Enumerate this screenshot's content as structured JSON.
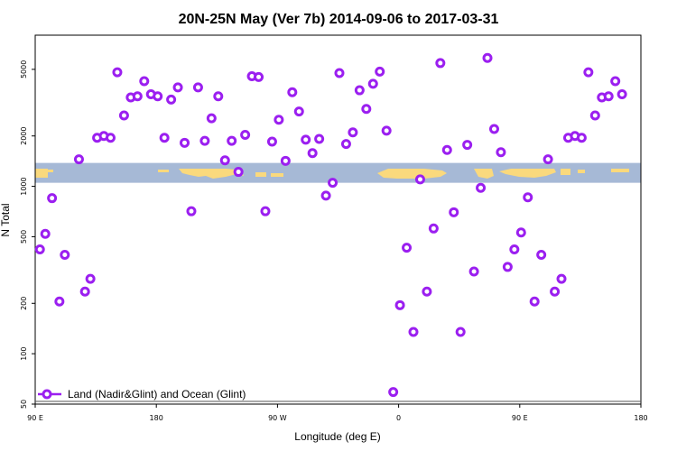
{
  "chart_data": {
    "type": "scatter",
    "title": "20N-25N May (Ver 7b)   2014-09-06 to 2017-03-31",
    "xlabel": "Longitude (deg E)",
    "ylabel": "N Total",
    "xlim": [
      90,
      540
    ],
    "ylim_log": [
      50,
      8000
    ],
    "y_scale": "log",
    "x_ticks": [
      {
        "value": 90,
        "label": "90 E"
      },
      {
        "value": 180,
        "label": "180"
      },
      {
        "value": 270,
        "label": "90 W"
      },
      {
        "value": 360,
        "label": "0"
      },
      {
        "value": 450,
        "label": "90 E"
      },
      {
        "value": 540,
        "label": "180"
      }
    ],
    "y_ticks": [
      {
        "value": 50,
        "label": "50"
      },
      {
        "value": 100,
        "label": "100"
      },
      {
        "value": 200,
        "label": "200"
      },
      {
        "value": 500,
        "label": "500"
      },
      {
        "value": 1000,
        "label": "1000"
      },
      {
        "value": 2000,
        "label": "2000"
      },
      {
        "value": 5000,
        "label": "5000"
      }
    ],
    "series": [
      {
        "name": "Land (Nadir&Glint) and Ocean (Glint)",
        "color": "#9b1ff0",
        "points": [
          [
            93.5,
            420
          ],
          [
            97.5,
            520
          ],
          [
            102.5,
            850
          ],
          [
            108,
            205
          ],
          [
            112,
            390
          ],
          [
            122.5,
            1450
          ],
          [
            127,
            235
          ],
          [
            131,
            280
          ],
          [
            136,
            1950
          ],
          [
            141,
            2000
          ],
          [
            146,
            1950
          ],
          [
            151,
            4800
          ],
          [
            156,
            2650
          ],
          [
            161,
            3400
          ],
          [
            166,
            3450
          ],
          [
            171,
            4250
          ],
          [
            176,
            3550
          ],
          [
            181,
            3450
          ],
          [
            186,
            1950
          ],
          [
            191,
            3300
          ],
          [
            196,
            3900
          ],
          [
            201,
            1820
          ],
          [
            206,
            710
          ],
          [
            211,
            3900
          ],
          [
            216,
            1870
          ],
          [
            221,
            2550
          ],
          [
            226,
            3450
          ],
          [
            231,
            1430
          ],
          [
            236,
            1870
          ],
          [
            241,
            1220
          ],
          [
            246,
            2030
          ],
          [
            251,
            4550
          ],
          [
            256,
            4500
          ],
          [
            261,
            710
          ],
          [
            266,
            1850
          ],
          [
            271,
            2500
          ],
          [
            276,
            1420
          ],
          [
            281,
            3650
          ],
          [
            286,
            2800
          ],
          [
            291,
            1900
          ],
          [
            296,
            1580
          ],
          [
            301,
            1920
          ],
          [
            306,
            880
          ],
          [
            311,
            1050
          ],
          [
            316,
            4750
          ],
          [
            321,
            1790
          ],
          [
            326,
            2100
          ],
          [
            331,
            3750
          ],
          [
            336,
            2900
          ],
          [
            341,
            4100
          ],
          [
            346,
            4850
          ],
          [
            351,
            2150
          ],
          [
            356,
            59
          ],
          [
            361,
            195
          ],
          [
            366,
            430
          ],
          [
            371,
            135
          ],
          [
            376,
            1100
          ],
          [
            381,
            235
          ],
          [
            386,
            560
          ],
          [
            391,
            5450
          ],
          [
            396,
            1650
          ],
          [
            401,
            700
          ],
          [
            406,
            135
          ],
          [
            411,
            1770
          ],
          [
            416,
            310
          ],
          [
            421,
            980
          ],
          [
            426,
            5850
          ],
          [
            431,
            2200
          ],
          [
            436,
            1600
          ],
          [
            441,
            330
          ],
          [
            446,
            420
          ],
          [
            451,
            530
          ],
          [
            456,
            860
          ],
          [
            461,
            205
          ],
          [
            466,
            390
          ],
          [
            471,
            1450
          ],
          [
            476,
            235
          ],
          [
            481,
            280
          ],
          [
            486,
            1950
          ],
          [
            491,
            2000
          ],
          [
            496,
            1950
          ],
          [
            501,
            4800
          ],
          [
            506,
            2650
          ],
          [
            511,
            3400
          ],
          [
            516,
            3450
          ],
          [
            521,
            4250
          ],
          [
            526,
            3550
          ]
        ]
      }
    ],
    "map_band": {
      "y_range": [
        1050,
        1380
      ]
    },
    "legend": {
      "position": "bottom-left",
      "label": "Land (Nadir&Glint) and Ocean (Glint)"
    }
  }
}
